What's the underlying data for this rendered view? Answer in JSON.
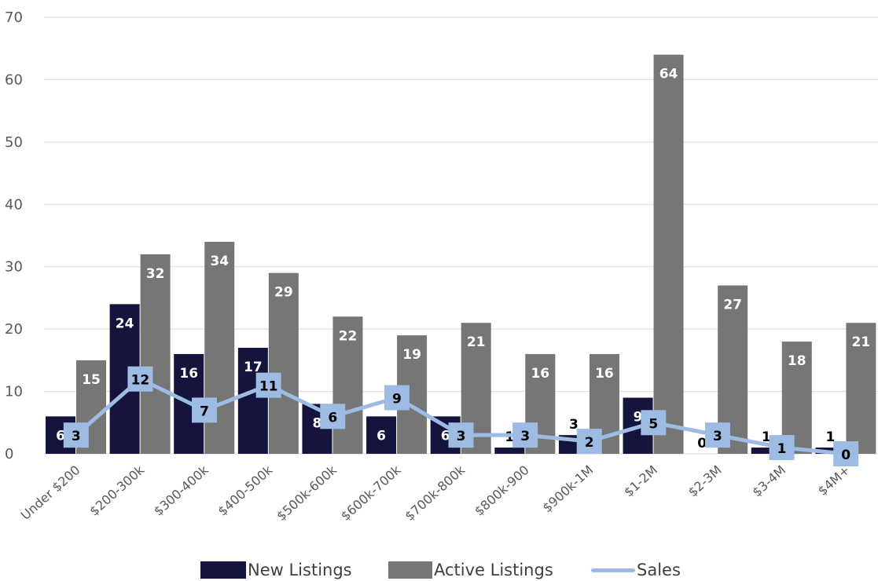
{
  "chart_data": {
    "type": "bar",
    "title": "",
    "xlabel": "",
    "ylabel": "",
    "ylim": [
      0,
      70
    ],
    "yticks": [
      0,
      10,
      20,
      30,
      40,
      50,
      60,
      70
    ],
    "grid": "horizontal",
    "legend_position": "bottom",
    "categories": [
      "Under $200",
      "$200-300k",
      "$300-400k",
      "$400-500k",
      "$500k-600k",
      "$600k-700k",
      "$700k-800k",
      "$800k-900",
      "$900k-1M",
      "$1-2M",
      "$2-3M",
      "$3-4M",
      "$4M+"
    ],
    "series": [
      {
        "name": "New Listings",
        "type": "bar",
        "color": "#14143c",
        "values": [
          6,
          24,
          16,
          17,
          8,
          6,
          6,
          1,
          3,
          9,
          0,
          1,
          1
        ]
      },
      {
        "name": "Active Listings",
        "type": "bar",
        "color": "#767676",
        "values": [
          15,
          32,
          34,
          29,
          22,
          19,
          21,
          16,
          16,
          64,
          27,
          18,
          21
        ]
      },
      {
        "name": "Sales",
        "type": "line",
        "color": "#9dbbe3",
        "values": [
          3,
          12,
          7,
          11,
          6,
          9,
          3,
          3,
          2,
          5,
          3,
          1,
          0
        ]
      }
    ]
  }
}
